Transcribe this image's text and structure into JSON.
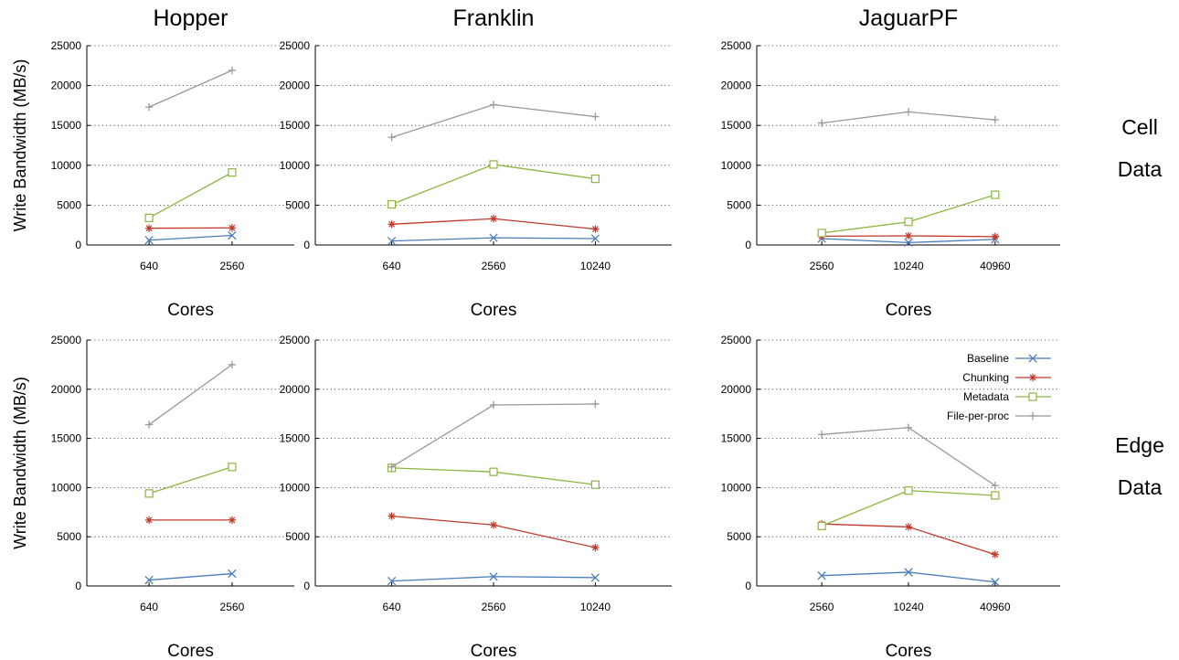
{
  "figure": {
    "row_labels": [
      [
        "Cell",
        "Data"
      ],
      [
        "Edge",
        "Data"
      ]
    ]
  },
  "colors": {
    "Baseline": "#4a7ebb",
    "Chunking": "#c0392b",
    "Metadata": "#8ab63f",
    "File-per-proc": "#999999"
  },
  "markers": {
    "Baseline": "x",
    "Chunking": "star",
    "Metadata": "square",
    "File-per-proc": "plus"
  },
  "chart_data": [
    {
      "type": "line",
      "title": "Hopper",
      "xlabel": "Cores",
      "ylabel": "Write Bandwidth (MB/s)",
      "ylim": [
        0,
        25000
      ],
      "yticks": [
        "0",
        "5000",
        "10000",
        "15000",
        "20000",
        "25000"
      ],
      "categories": [
        "640",
        "2560"
      ],
      "grid": "horizontal dotted",
      "series": [
        {
          "name": "Baseline",
          "values": [
            600,
            1200
          ]
        },
        {
          "name": "Chunking",
          "values": [
            2100,
            2150
          ]
        },
        {
          "name": "Metadata",
          "values": [
            3400,
            9100
          ]
        },
        {
          "name": "File-per-proc",
          "values": [
            17300,
            21900
          ]
        }
      ]
    },
    {
      "type": "line",
      "title": "Franklin",
      "xlabel": "Cores",
      "ylabel": "",
      "ylim": [
        0,
        25000
      ],
      "yticks": [
        "0",
        "5000",
        "10000",
        "15000",
        "20000",
        "25000"
      ],
      "categories": [
        "640",
        "2560",
        "10240"
      ],
      "grid": "horizontal dotted",
      "series": [
        {
          "name": "Baseline",
          "values": [
            500,
            900,
            800
          ]
        },
        {
          "name": "Chunking",
          "values": [
            2600,
            3300,
            2000
          ]
        },
        {
          "name": "Metadata",
          "values": [
            5100,
            10100,
            8300
          ]
        },
        {
          "name": "File-per-proc",
          "values": [
            13500,
            17600,
            16100
          ]
        }
      ]
    },
    {
      "type": "line",
      "title": "JaguarPF",
      "xlabel": "Cores",
      "ylabel": "",
      "ylim": [
        0,
        25000
      ],
      "yticks": [
        "0",
        "5000",
        "10000",
        "15000",
        "20000",
        "25000"
      ],
      "categories": [
        "2560",
        "10240",
        "40960"
      ],
      "grid": "horizontal dotted",
      "series": [
        {
          "name": "Baseline",
          "values": [
            800,
            300,
            700
          ]
        },
        {
          "name": "Chunking",
          "values": [
            1100,
            1150,
            1050
          ]
        },
        {
          "name": "Metadata",
          "values": [
            1500,
            2900,
            6300
          ]
        },
        {
          "name": "File-per-proc",
          "values": [
            15300,
            16700,
            15700
          ]
        }
      ]
    },
    {
      "type": "line",
      "title": "",
      "xlabel": "Cores",
      "ylabel": "Write Bandwidth (MB/s)",
      "ylim": [
        0,
        25000
      ],
      "yticks": [
        "0",
        "5000",
        "10000",
        "15000",
        "20000",
        "25000"
      ],
      "categories": [
        "640",
        "2560"
      ],
      "grid": "horizontal dotted",
      "series": [
        {
          "name": "Baseline",
          "values": [
            600,
            1250
          ]
        },
        {
          "name": "Chunking",
          "values": [
            6700,
            6700
          ]
        },
        {
          "name": "Metadata",
          "values": [
            9400,
            12100
          ]
        },
        {
          "name": "File-per-proc",
          "values": [
            16400,
            22500
          ]
        }
      ]
    },
    {
      "type": "line",
      "title": "",
      "xlabel": "Cores",
      "ylabel": "",
      "ylim": [
        0,
        25000
      ],
      "yticks": [
        "0",
        "5000",
        "10000",
        "15000",
        "20000",
        "25000"
      ],
      "categories": [
        "640",
        "2560",
        "10240"
      ],
      "grid": "horizontal dotted",
      "series": [
        {
          "name": "Baseline",
          "values": [
            500,
            950,
            850
          ]
        },
        {
          "name": "Chunking",
          "values": [
            7100,
            6200,
            3900
          ]
        },
        {
          "name": "Metadata",
          "values": [
            12000,
            11600,
            10300
          ]
        },
        {
          "name": "File-per-proc",
          "values": [
            12100,
            18400,
            18500
          ]
        }
      ]
    },
    {
      "type": "line",
      "title": "",
      "xlabel": "Cores",
      "ylabel": "",
      "ylim": [
        0,
        25000
      ],
      "yticks": [
        "0",
        "5000",
        "10000",
        "15000",
        "20000",
        "25000"
      ],
      "categories": [
        "2560",
        "10240",
        "40960"
      ],
      "grid": "horizontal dotted",
      "legend": "top-right",
      "series": [
        {
          "name": "Baseline",
          "values": [
            1050,
            1400,
            400
          ]
        },
        {
          "name": "Chunking",
          "values": [
            6300,
            6000,
            3200
          ]
        },
        {
          "name": "Metadata",
          "values": [
            6100,
            9700,
            9200
          ]
        },
        {
          "name": "File-per-proc",
          "values": [
            15400,
            16100,
            10200
          ]
        }
      ]
    }
  ]
}
